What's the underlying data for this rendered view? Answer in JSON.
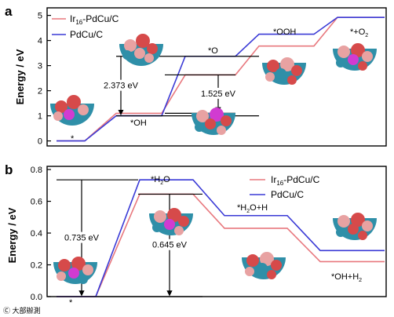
{
  "panels": {
    "a_label": "a",
    "b_label": "b"
  },
  "chart_data": [
    {
      "type": "line",
      "panel": "a",
      "ylabel": "Energy / eV",
      "ylim": [
        -0.2,
        5.3
      ],
      "yticks": [
        "0",
        "1",
        "2",
        "3",
        "4",
        "5"
      ],
      "grid": false,
      "legend_position": "top-left",
      "steps": [
        "*",
        "*OH",
        "*O",
        "*OOH",
        "*+O2"
      ],
      "step_labels": {
        "s0": "*",
        "s1": "*OH",
        "s2": "*O",
        "s3": "*OOH",
        "s4": "*+O",
        "s4_sub": "2"
      },
      "series": [
        {
          "name": "Ir16-PdCu/C",
          "name_main": "Ir",
          "name_sub": "16",
          "name_rest": "-PdCu/C",
          "color": "#e8787e",
          "values": [
            0.0,
            1.1,
            2.63,
            3.78,
            4.92
          ]
        },
        {
          "name": "PdCu/C",
          "color": "#3a3ad6",
          "values": [
            0.0,
            1.0,
            3.37,
            4.25,
            4.92
          ]
        }
      ],
      "annotations": [
        {
          "text": "2.373 eV",
          "from": 3.37,
          "to": 1.0
        },
        {
          "text": "1.525 eV",
          "from": 2.63,
          "to": 1.1
        }
      ]
    },
    {
      "type": "line",
      "panel": "b",
      "ylabel": "Energy / eV",
      "ylim": [
        0.0,
        0.82
      ],
      "yticks": [
        "0.0",
        "0.2",
        "0.4",
        "0.6",
        "0.8"
      ],
      "grid": false,
      "legend_position": "top-right",
      "steps": [
        "*",
        "*H2O",
        "*H2O+H",
        "*OH+H2"
      ],
      "step_labels": {
        "s0": "*",
        "s1_main": "*H",
        "s1_sub": "2",
        "s1_rest": "O",
        "s2_main": "*H",
        "s2_sub": "2",
        "s2_rest": "O+H",
        "s3_main": "*OH+H",
        "s3_sub": "2"
      },
      "series": [
        {
          "name": "Ir16-PdCu/C",
          "name_main": "Ir",
          "name_sub": "16",
          "name_rest": "-PdCu/C",
          "color": "#e8787e",
          "values": [
            0.0,
            0.645,
            0.43,
            0.22
          ]
        },
        {
          "name": "PdCu/C",
          "color": "#3a3ad6",
          "values": [
            0.0,
            0.735,
            0.51,
            0.29
          ]
        }
      ],
      "annotations": [
        {
          "text": "0.735 eV",
          "from": 0.735,
          "to": 0.0
        },
        {
          "text": "0.645 eV",
          "from": 0.645,
          "to": 0.0
        }
      ]
    }
  ],
  "colors": {
    "Ir": "#d64a4a",
    "Pd": "#2f8fa8",
    "Cu": "#e8a2a2",
    "center": "#d13bd1",
    "support": "#bbbbbb"
  },
  "watermark": "Ⓒ 大部辦測"
}
